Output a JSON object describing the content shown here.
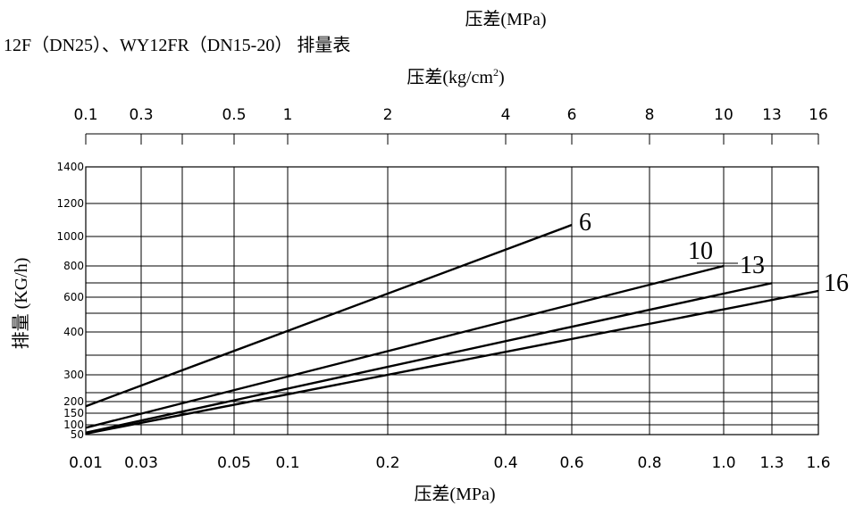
{
  "chart_data": {
    "type": "line",
    "title_unit_top": "压差(MPa)",
    "title": "12F（DN25）、WY12FR（DN15-20） 排量表",
    "top_axis_label": "压差(kg/cm²)",
    "top_axis_label_base": "压差(kg/cm",
    "top_axis_label_sup": "2",
    "top_axis_label_tail": ")",
    "top_ticks": [
      "0.1",
      "0.3",
      "0.5",
      "1",
      "2",
      "4",
      "6",
      "8",
      "10",
      "13",
      "16"
    ],
    "xlabel": "压差(MPa)",
    "x_ticks": [
      "0.01",
      "0.03",
      "0.05",
      "0.1",
      "0.2",
      "0.4",
      "0.6",
      "0.8",
      "1.0",
      "1.3",
      "1.6"
    ],
    "ylabel": "排量 (KG/h)",
    "y_ticks": [
      "50",
      "100",
      "150",
      "200",
      "300",
      "400",
      "600",
      "800",
      "1000",
      "1200",
      "1400"
    ],
    "series": [
      {
        "name": "6",
        "points": [
          [
            0.01,
            180
          ],
          [
            0.6,
            1070
          ]
        ]
      },
      {
        "name": "10",
        "points": [
          [
            0.01,
            85
          ],
          [
            1.0,
            800
          ]
        ]
      },
      {
        "name": "13",
        "points": [
          [
            0.01,
            60
          ],
          [
            1.3,
            690
          ]
        ]
      },
      {
        "name": "16",
        "points": [
          [
            0.01,
            55
          ],
          [
            1.6,
            640
          ]
        ]
      }
    ]
  }
}
